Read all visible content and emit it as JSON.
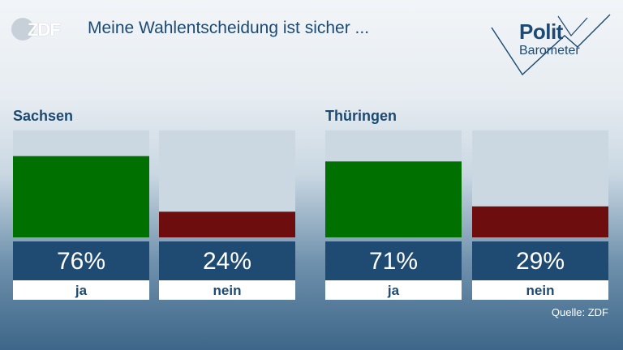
{
  "header": {
    "brand": "ZDF",
    "title": "Meine Wahlentscheidung ist sicher ...",
    "logo_line1": "Polit",
    "logo_line2": "Barometer"
  },
  "source": "Quelle: ZDF",
  "colors": {
    "ja": "#007000",
    "nein": "#6e0d0d",
    "track": "#cbd8e2",
    "label_bg": "#1f4a72"
  },
  "chart_data": {
    "type": "bar",
    "title": "Meine Wahlentscheidung ist sicher ...",
    "categories": [
      "ja",
      "nein"
    ],
    "ylim": [
      0,
      100
    ],
    "groups": [
      {
        "name": "Sachsen",
        "values": [
          76,
          24
        ],
        "labels": [
          "76%",
          "24%"
        ]
      },
      {
        "name": "Thüringen",
        "values": [
          71,
          29
        ],
        "labels": [
          "71%",
          "29%"
        ]
      }
    ]
  }
}
